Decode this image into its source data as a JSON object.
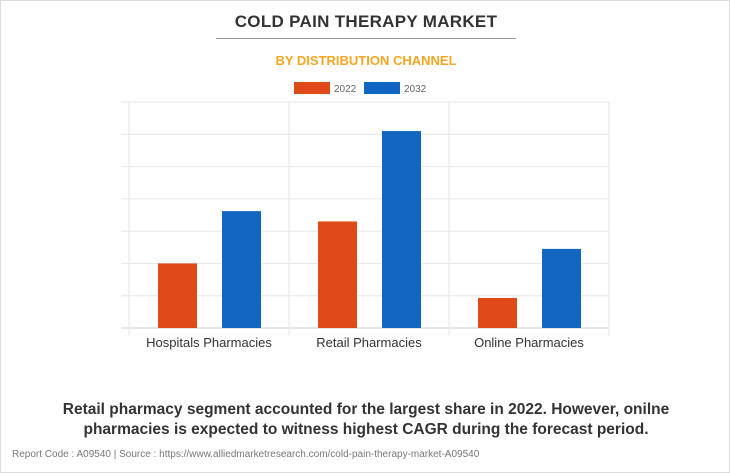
{
  "title": "COLD PAIN THERAPY MARKET",
  "subtitle": "BY DISTRIBUTION CHANNEL",
  "chart_data": {
    "type": "bar",
    "categories": [
      "Hospitals Pharmacies",
      "Retail Pharmacies",
      "Online Pharmacies"
    ],
    "series": [
      {
        "name": "2022",
        "color": "#e04a18",
        "values": [
          2.0,
          3.3,
          0.93
        ]
      },
      {
        "name": "2032",
        "color": "#1166c2",
        "values": [
          3.62,
          6.1,
          2.45
        ]
      }
    ],
    "ylim": [
      0,
      7
    ],
    "grid": true,
    "legend": "top-center",
    "xlabel": "",
    "ylabel": ""
  },
  "caption": "Retail pharmacy segment accounted for the largest share in 2022. However, onilne pharmacies is expected to witness highest CAGR during the forecast period.",
  "footer": "Report Code : A09540  |  Source : https://www.alliedmarketresearch.com/cold-pain-therapy-market-A09540"
}
